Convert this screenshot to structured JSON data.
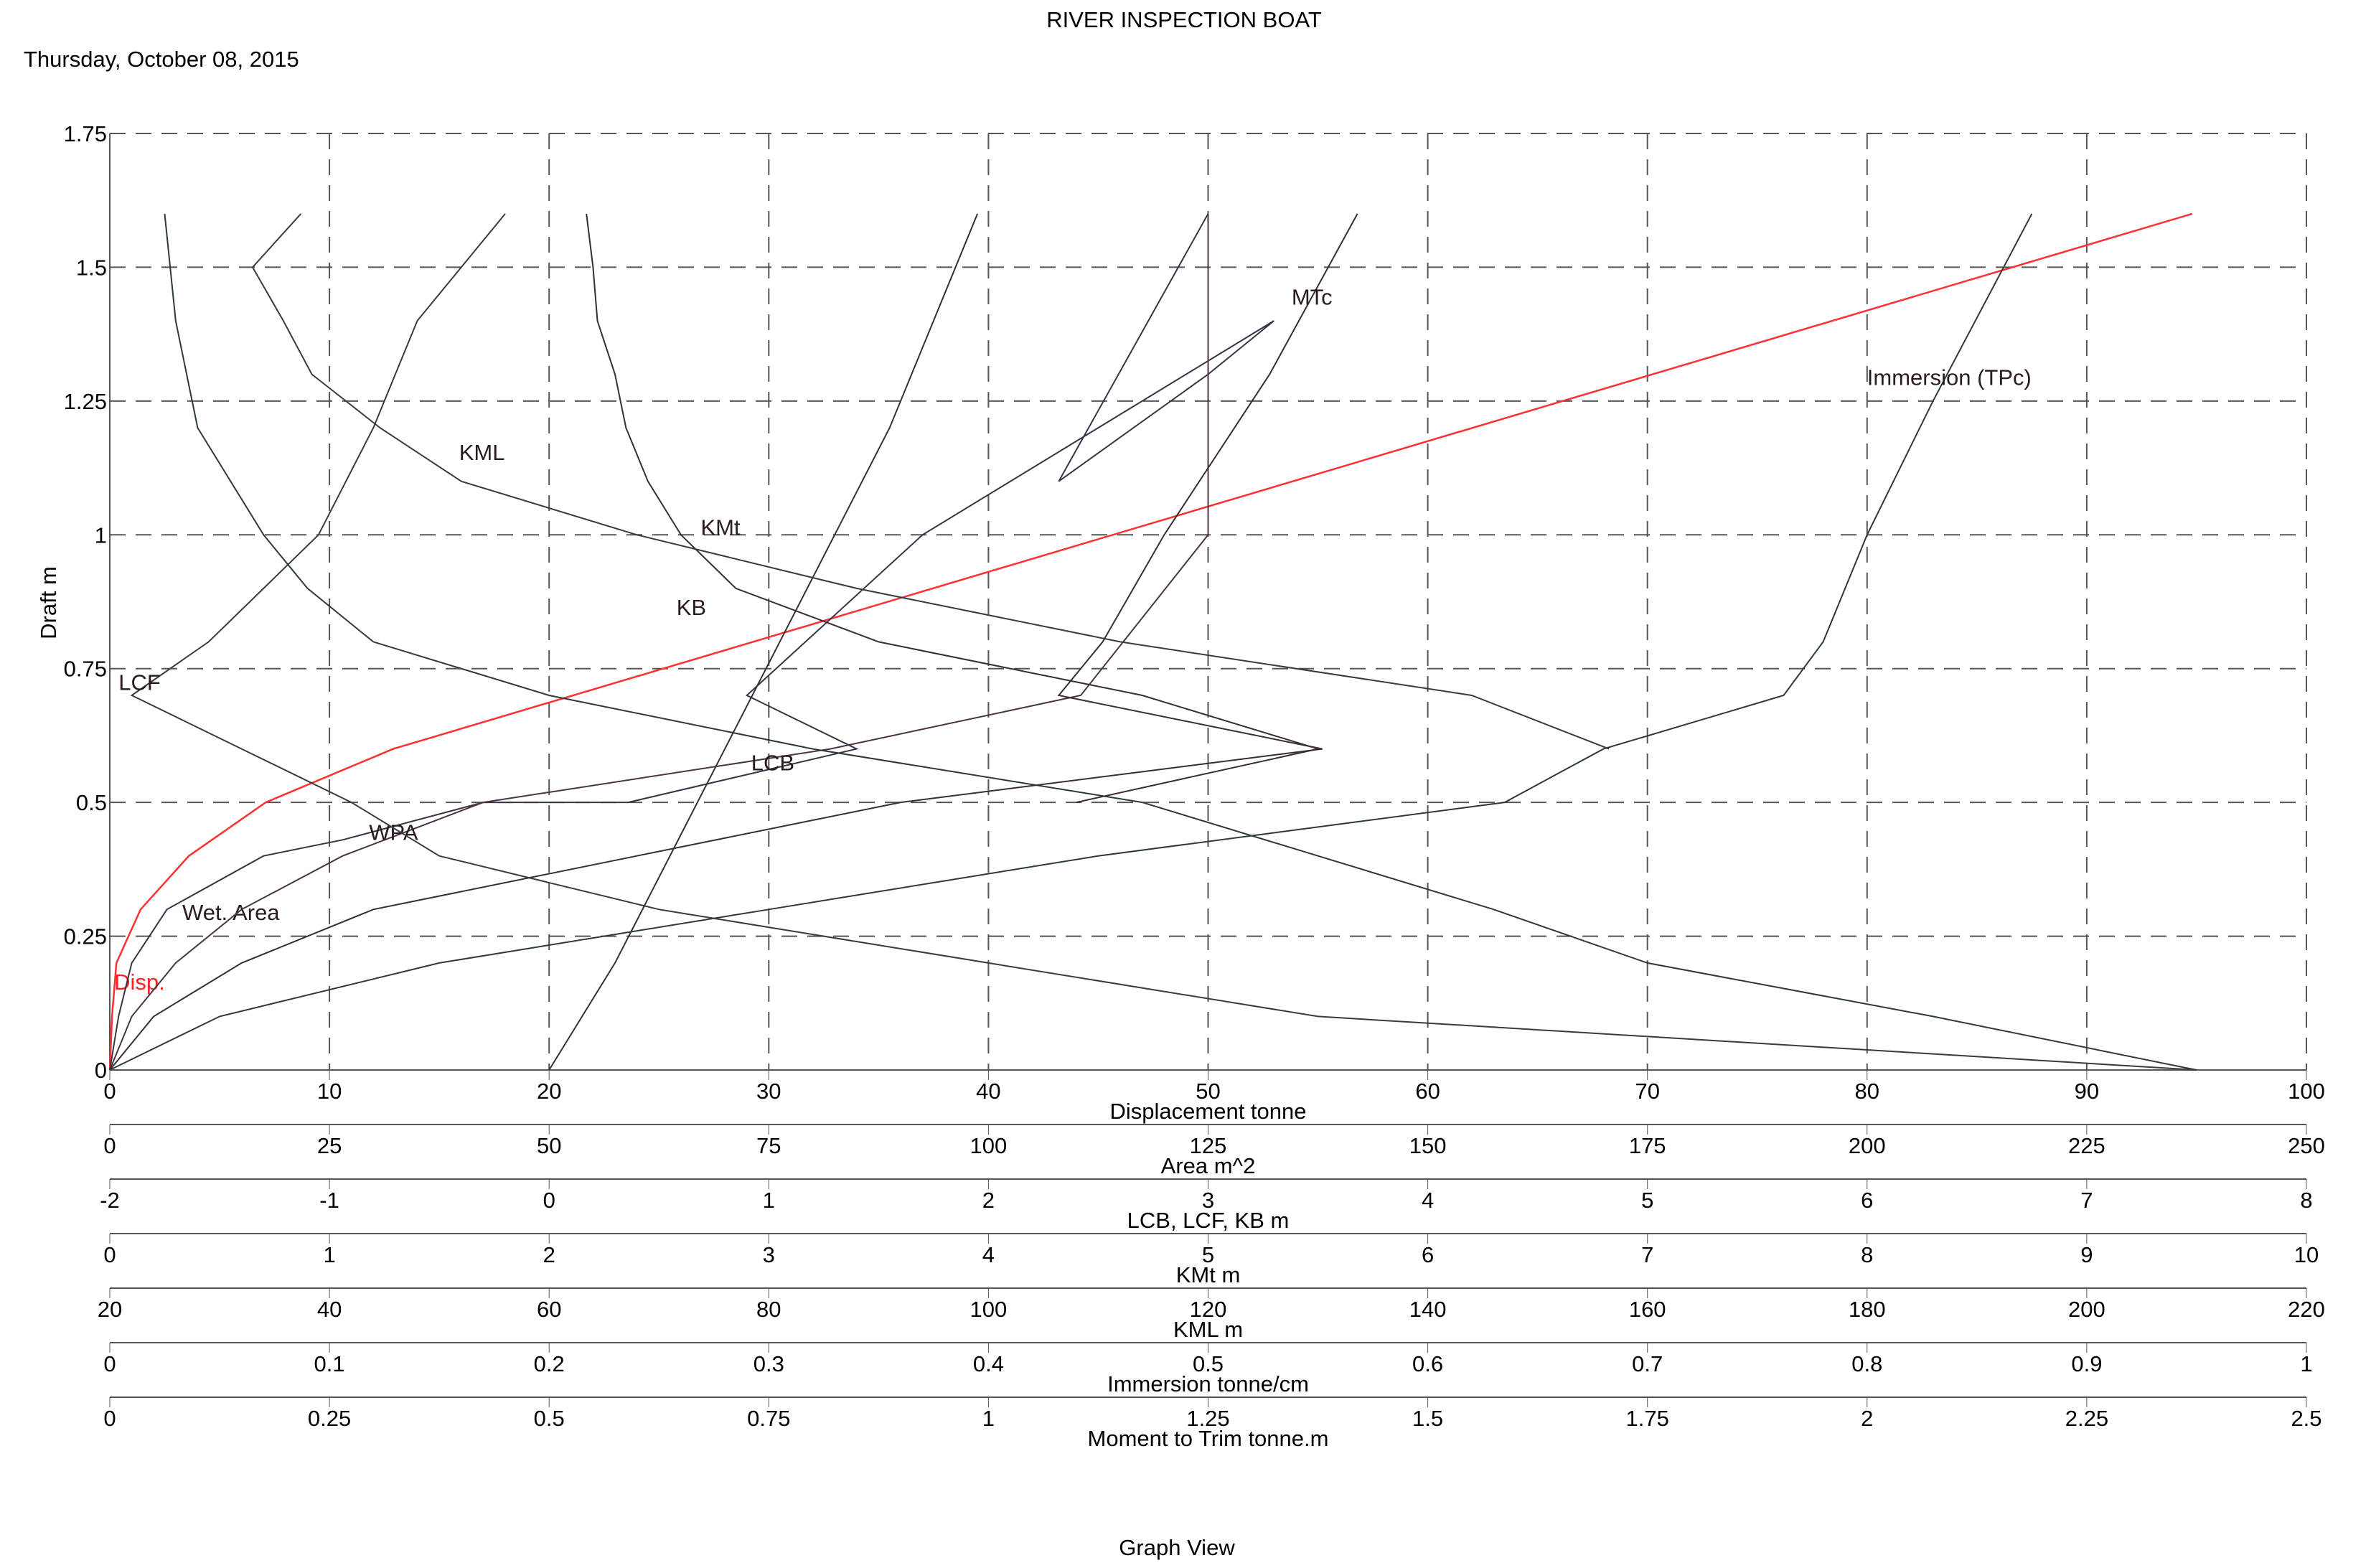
{
  "header": {
    "title": "RIVER INSPECTION BOAT",
    "date": "Thursday, October 08, 2015"
  },
  "footer": {
    "caption": "Graph View"
  },
  "chart_data": {
    "type": "line",
    "title": "RIVER INSPECTION BOAT",
    "ylabel": "Draft  m",
    "ylim": [
      0,
      1.75
    ],
    "yticks": [
      "0",
      "0.25",
      "0.5",
      "0.75",
      "1",
      "1.25",
      "1.5",
      "1.75"
    ],
    "ytick_values": [
      0,
      0.25,
      0.5,
      0.75,
      1,
      1.25,
      1.5,
      1.75
    ],
    "grid": true,
    "x_axes": [
      {
        "id": "disp",
        "label": "Displacement  tonne",
        "range": [
          0,
          100
        ],
        "ticks": [
          "0",
          "10",
          "20",
          "30",
          "40",
          "50",
          "60",
          "70",
          "80",
          "90",
          "100"
        ]
      },
      {
        "id": "area",
        "label": "Area  m^2",
        "range": [
          0,
          250
        ],
        "ticks": [
          "0",
          "25",
          "50",
          "75",
          "100",
          "125",
          "150",
          "175",
          "200",
          "225",
          "250"
        ]
      },
      {
        "id": "lcb",
        "label": "LCB, LCF, KB  m",
        "range": [
          -2,
          8
        ],
        "ticks": [
          "-2",
          "-1",
          "0",
          "1",
          "2",
          "3",
          "4",
          "5",
          "6",
          "7",
          "8"
        ]
      },
      {
        "id": "kmt",
        "label": "KMt  m",
        "range": [
          0,
          10
        ],
        "ticks": [
          "0",
          "1",
          "2",
          "3",
          "4",
          "5",
          "6",
          "7",
          "8",
          "9",
          "10"
        ]
      },
      {
        "id": "kml",
        "label": "KML  m",
        "range": [
          20,
          220
        ],
        "ticks": [
          "20",
          "40",
          "60",
          "80",
          "100",
          "120",
          "140",
          "160",
          "180",
          "200",
          "220"
        ]
      },
      {
        "id": "tpc",
        "label": "Immersion  tonne/cm",
        "range": [
          0,
          1
        ],
        "ticks": [
          "0",
          "0.1",
          "0.2",
          "0.3",
          "0.4",
          "0.5",
          "0.6",
          "0.7",
          "0.8",
          "0.9",
          "1"
        ]
      },
      {
        "id": "mtc",
        "label": "Moment to Trim  tonne.m",
        "range": [
          0,
          2.5
        ],
        "ticks": [
          "0",
          "0.25",
          "0.5",
          "0.75",
          "1",
          "1.25",
          "1.5",
          "1.75",
          "2",
          "2.25",
          "2.5"
        ]
      }
    ],
    "series": [
      {
        "name": "Disp.",
        "axis": "disp",
        "color": "#ff3030",
        "label_at": [
          0.2,
          0.15
        ],
        "points": [
          [
            0,
            0
          ],
          [
            0.1,
            0.1
          ],
          [
            0.3,
            0.2
          ],
          [
            1.4,
            0.3
          ],
          [
            3.6,
            0.4
          ],
          [
            7.1,
            0.5
          ],
          [
            12.9,
            0.6
          ],
          [
            94.8,
            1.6
          ]
        ]
      },
      {
        "name": "Wet. Area",
        "axis": "area",
        "color": "#3a3346",
        "label_at": [
          3.3,
          0.28
        ],
        "points": [
          [
            0,
            0
          ],
          [
            1.0,
            0.1
          ],
          [
            2.5,
            0.2
          ],
          [
            6.5,
            0.3
          ],
          [
            17.5,
            0.4
          ],
          [
            26.5,
            0.43
          ],
          [
            42.5,
            0.5
          ],
          [
            59,
            0.5
          ],
          [
            85,
            0.6
          ],
          [
            72.5,
            0.7
          ],
          [
            92.5,
            1.0
          ],
          [
            132.5,
            1.4
          ],
          [
            125,
            1.3
          ],
          [
            108,
            1.1
          ],
          [
            125,
            1.6
          ]
        ]
      },
      {
        "name": "WPA",
        "axis": "area",
        "color": "#4a3540",
        "label_at": [
          11.8,
          0.43
        ],
        "points": [
          [
            0,
            0
          ],
          [
            2.5,
            0.1
          ],
          [
            7.5,
            0.2
          ],
          [
            15,
            0.3
          ],
          [
            26.5,
            0.4
          ],
          [
            42.5,
            0.5
          ],
          [
            82,
            0.6
          ],
          [
            110.5,
            0.7
          ],
          [
            125,
            1.0
          ],
          [
            125,
            1.6
          ]
        ]
      },
      {
        "name": "LCF",
        "axis": "lcb",
        "color": "#3a3a44",
        "label_at": [
          0.4,
          0.71
        ],
        "points": [
          [
            7.5,
            0
          ],
          [
            3.5,
            0.1
          ],
          [
            2.0,
            0.2
          ],
          [
            0.5,
            0.3
          ],
          [
            -0.5,
            0.4
          ],
          [
            -0.9,
            0.5
          ],
          [
            -1.4,
            0.6
          ],
          [
            -1.9,
            0.7
          ],
          [
            -1.55,
            0.8
          ],
          [
            -1.3,
            0.9
          ],
          [
            -1.05,
            1.0
          ],
          [
            -0.8,
            1.2
          ],
          [
            -0.6,
            1.4
          ],
          [
            -0.4,
            1.5
          ],
          [
            -0.2,
            1.6
          ]
        ]
      },
      {
        "name": "LCB",
        "axis": "lcb",
        "color": "#2e3a3a",
        "label_at": [
          29.2,
          0.56
        ],
        "points": [
          [
            7.5,
            0
          ],
          [
            6.3,
            0.1
          ],
          [
            5.0,
            0.2
          ],
          [
            4.3,
            0.3
          ],
          [
            3.5,
            0.4
          ],
          [
            2.7,
            0.5
          ],
          [
            1.2,
            0.6
          ],
          [
            0,
            0.7
          ],
          [
            -0.8,
            0.8
          ],
          [
            -1.1,
            0.9
          ],
          [
            -1.3,
            1.0
          ],
          [
            -1.6,
            1.2
          ],
          [
            -1.7,
            1.4
          ],
          [
            -1.75,
            1.6
          ]
        ]
      },
      {
        "name": "KB",
        "axis": "lcb",
        "color": "#3a2e30",
        "label_at": [
          25.8,
          0.85
        ],
        "points": [
          [
            0,
            0
          ],
          [
            0.3,
            0.2
          ],
          [
            0.55,
            0.4
          ],
          [
            0.8,
            0.6
          ],
          [
            1.05,
            0.8
          ],
          [
            1.3,
            1.0
          ],
          [
            1.55,
            1.2
          ],
          [
            1.75,
            1.4
          ],
          [
            1.95,
            1.6
          ]
        ]
      },
      {
        "name": "KMt",
        "axis": "kmt",
        "color": "#3a2e30",
        "label_at": [
          26.9,
          1.0
        ],
        "points": [
          [
            4.4,
            0.5
          ],
          [
            5.5,
            0.6
          ],
          [
            4.7,
            0.7
          ],
          [
            3.5,
            0.8
          ],
          [
            2.85,
            0.9
          ],
          [
            2.6,
            1.0
          ],
          [
            2.45,
            1.1
          ],
          [
            2.35,
            1.2
          ],
          [
            2.3,
            1.3
          ],
          [
            2.22,
            1.4
          ],
          [
            2.2,
            1.5
          ],
          [
            2.17,
            1.6
          ]
        ]
      },
      {
        "name": "KML",
        "axis": "kml",
        "color": "#3a3a44",
        "label_at": [
          15.9,
          1.14
        ],
        "points": [
          [
            156.5,
            0.6
          ],
          [
            144,
            0.7
          ],
          [
            112,
            0.8
          ],
          [
            88,
            0.9
          ],
          [
            68,
            1.0
          ],
          [
            52,
            1.1
          ],
          [
            44.6,
            1.2
          ],
          [
            38.4,
            1.3
          ],
          [
            35.8,
            1.4
          ],
          [
            33,
            1.5
          ],
          [
            37.4,
            1.6
          ]
        ]
      },
      {
        "name": "Immersion (TPc)",
        "axis": "tpc",
        "color": "#2e3a3a",
        "label_at": [
          80,
          1.28
        ],
        "points": [
          [
            0,
            0
          ],
          [
            0.05,
            0.1
          ],
          [
            0.15,
            0.2
          ],
          [
            0.3,
            0.3
          ],
          [
            0.45,
            0.4
          ],
          [
            0.635,
            0.5
          ],
          [
            0.68,
            0.6
          ],
          [
            0.762,
            0.7
          ],
          [
            0.78,
            0.8
          ],
          [
            0.8,
            1.0
          ],
          [
            0.83,
            1.25
          ],
          [
            0.875,
            1.6
          ]
        ]
      },
      {
        "name": "MTc",
        "axis": "mtc",
        "color": "#3a2e30",
        "label_at": [
          53.8,
          1.43
        ],
        "points": [
          [
            0,
            0
          ],
          [
            0.05,
            0.1
          ],
          [
            0.15,
            0.2
          ],
          [
            0.3,
            0.3
          ],
          [
            0.6,
            0.4
          ],
          [
            0.9,
            0.5
          ],
          [
            1.38,
            0.6
          ],
          [
            1.08,
            0.7
          ],
          [
            1.13,
            0.8
          ],
          [
            1.2,
            1.0
          ],
          [
            1.32,
            1.3
          ],
          [
            1.42,
            1.6
          ]
        ]
      }
    ]
  }
}
